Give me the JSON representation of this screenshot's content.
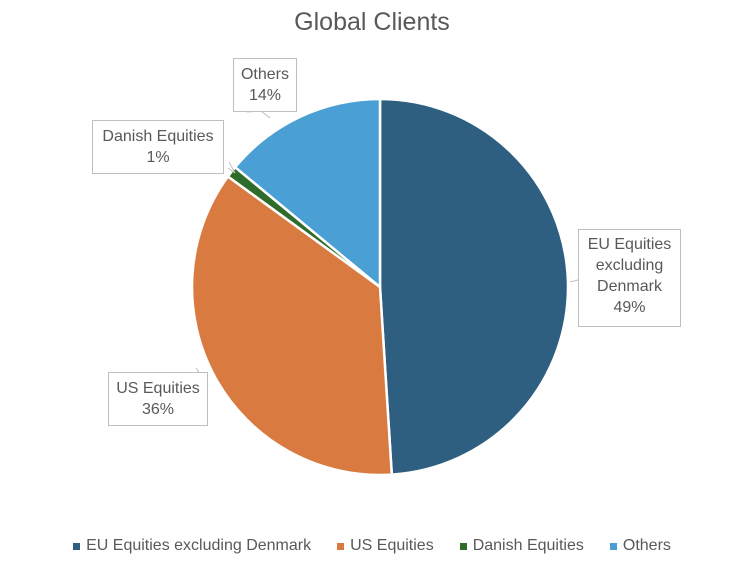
{
  "chart_data": {
    "type": "pie",
    "title": "Global Clients",
    "categories": [
      "EU Equities excluding Denmark",
      "US Equities",
      "Danish Equities",
      "Others"
    ],
    "values": [
      49,
      36,
      1,
      14
    ],
    "unit": "%",
    "colors": [
      "#2e5f80",
      "#d97a41",
      "#2f6b2a",
      "#4a9fd4"
    ],
    "data_labels": [
      {
        "name": "EU Equities excluding Denmark",
        "value": "49%"
      },
      {
        "name": "US Equities",
        "value": "36%"
      },
      {
        "name": "Danish Equities",
        "value": "1%"
      },
      {
        "name": "Others",
        "value": "14%"
      }
    ],
    "legend_position": "bottom",
    "start_angle": 0,
    "direction": "clockwise"
  },
  "labels": {
    "eu_line1": "EU Equities",
    "eu_line2": "excluding",
    "eu_line3": "Denmark",
    "eu_pct": "49%",
    "us_name": "US Equities",
    "us_pct": "36%",
    "dk_name": "Danish Equities",
    "dk_pct": "1%",
    "others_name": "Others",
    "others_pct": "14%"
  },
  "legend": [
    {
      "label": "EU Equities excluding Denmark",
      "color": "#2e5f80"
    },
    {
      "label": "US Equities",
      "color": "#d97a41"
    },
    {
      "label": "Danish Equities",
      "color": "#2f6b2a"
    },
    {
      "label": "Others",
      "color": "#4a9fd4"
    }
  ]
}
